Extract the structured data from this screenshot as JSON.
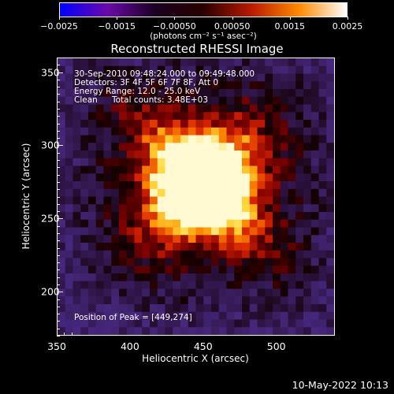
{
  "colorbar": {
    "tick_labels": [
      "−0.0025",
      "−0.0015",
      "−0.00050",
      "0.00050",
      "0.0015",
      "0.0025"
    ],
    "unit_label": "(photons cm⁻² s⁻¹ asec⁻²)",
    "range": [
      -0.0025,
      0.0025
    ],
    "colors": [
      "#0000ff",
      "#6a0aa8",
      "#1a0020",
      "#2a0000",
      "#b81a00",
      "#ff8a00",
      "#ffffff"
    ]
  },
  "chart_data": {
    "type": "heatmap",
    "title": "Reconstructed RHESSI Image",
    "xlabel": "Heliocentric X (arcsec)",
    "ylabel": "Heliocentric Y (arcsec)",
    "xlim": [
      350,
      540
    ],
    "ylim": [
      170,
      360
    ],
    "x_ticks": [
      "350",
      "400",
      "450",
      "500"
    ],
    "y_ticks": [
      "200",
      "250",
      "300",
      "350"
    ],
    "x_tick_values": [
      350,
      400,
      450,
      500
    ],
    "y_tick_values": [
      200,
      250,
      300,
      350
    ],
    "peak": [
      449,
      274
    ],
    "annotations": {
      "time_range": "30-Sep-2010 09:48:24.000 to 09:49:48.000",
      "detectors": "Detectors: 3F 4F 5F 6F 7F 8F, Att 0",
      "energy": "Energy Range: 12.0 - 25.0 keV",
      "algorithm": "Clean",
      "counts": "Total counts: 3.48E+03",
      "peak_text": "Position of Peak = [449,274]"
    }
  },
  "footer": {
    "date": "10-May-2022 10:13"
  }
}
